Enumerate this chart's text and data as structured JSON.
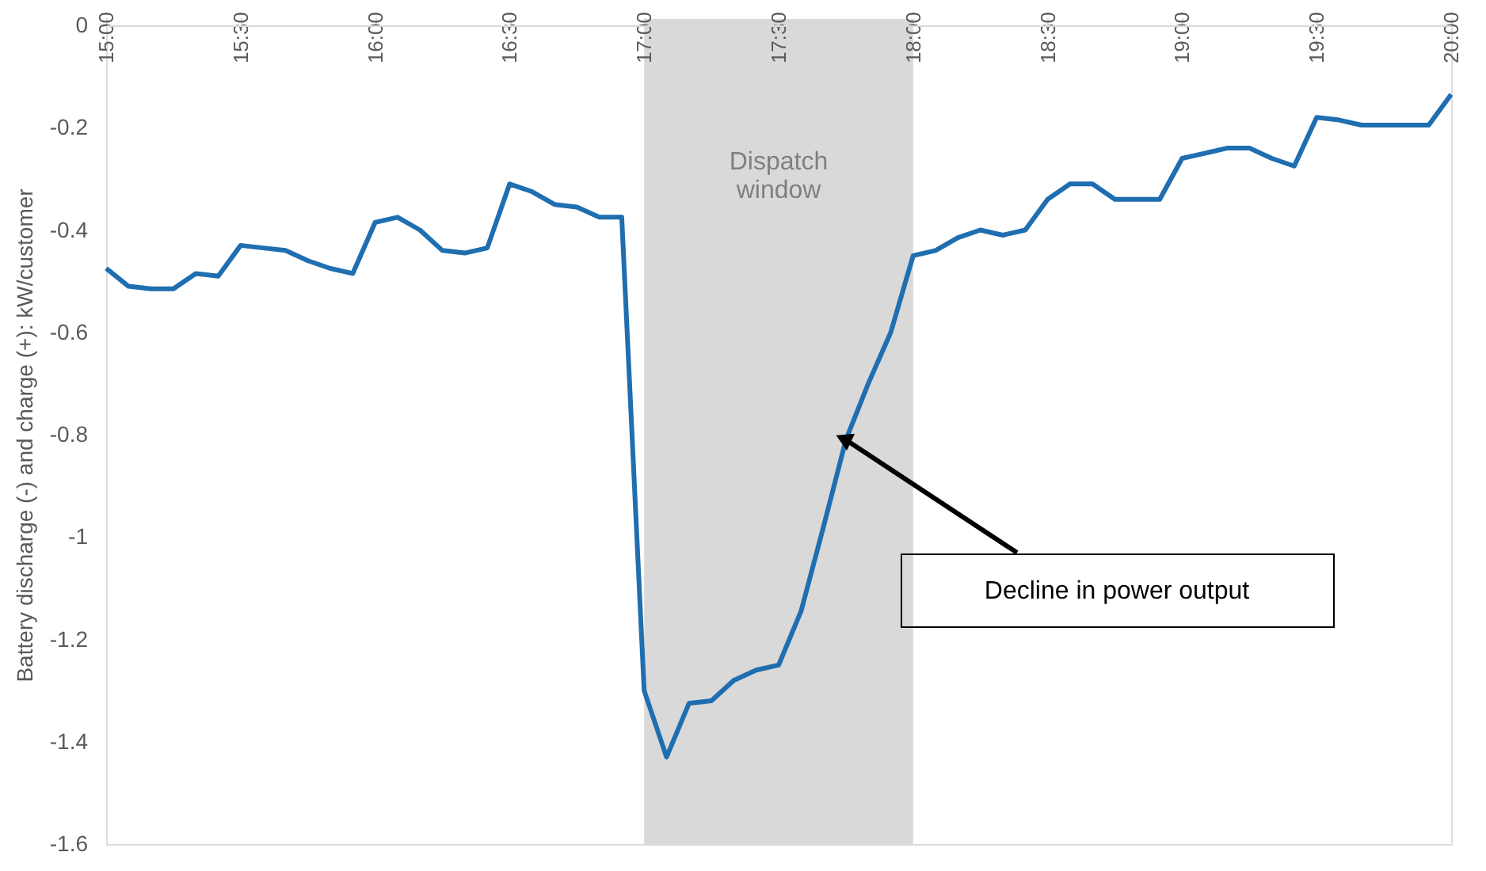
{
  "chart_data": {
    "type": "line",
    "ylabel": "Battery discharge (-) and charge (+): kW/customer",
    "x": [
      15,
      15.0833,
      15.1667,
      15.25,
      15.3333,
      15.4167,
      15.5,
      15.5833,
      15.6667,
      15.75,
      15.8333,
      15.9167,
      16,
      16.0833,
      16.1667,
      16.25,
      16.3333,
      16.4167,
      16.5,
      16.5833,
      16.6667,
      16.75,
      16.8333,
      16.9167,
      17,
      17.0833,
      17.1667,
      17.25,
      17.3333,
      17.4167,
      17.5,
      17.5833,
      17.6667,
      17.75,
      17.8333,
      17.9167,
      18,
      18.0833,
      18.1667,
      18.25,
      18.3333,
      18.4167,
      18.5,
      18.5833,
      18.6667,
      18.75,
      18.8333,
      18.9167,
      19,
      19.0833,
      19.1667,
      19.25,
      19.3333,
      19.4167,
      19.5,
      19.5833,
      19.6667,
      19.75,
      19.8333,
      19.9167,
      20
    ],
    "series": [
      {
        "color": "#1f6eb0",
        "values": [
          -0.475,
          -0.51,
          -0.515,
          -0.515,
          -0.485,
          -0.49,
          -0.43,
          -0.435,
          -0.44,
          -0.46,
          -0.475,
          -0.485,
          -0.385,
          -0.375,
          -0.4,
          -0.44,
          -0.445,
          -0.435,
          -0.31,
          -0.325,
          -0.35,
          -0.355,
          -0.375,
          -0.375,
          -1.3,
          -1.43,
          -1.325,
          -1.32,
          -1.28,
          -1.26,
          -1.25,
          -1.145,
          -0.98,
          -0.81,
          -0.7,
          -0.6,
          -0.45,
          -0.44,
          -0.415,
          -0.4,
          -0.41,
          -0.4,
          -0.34,
          -0.31,
          -0.31,
          -0.34,
          -0.34,
          -0.34,
          -0.26,
          -0.25,
          -0.24,
          -0.24,
          -0.26,
          -0.275,
          -0.18,
          -0.185,
          -0.195,
          -0.195,
          -0.195,
          -0.195,
          -0.135
        ]
      }
    ],
    "xlim": [
      15,
      20
    ],
    "xticks": [
      {
        "value": 15,
        "label": "15:00"
      },
      {
        "value": 15.5,
        "label": "15:30"
      },
      {
        "value": 16,
        "label": "16:00"
      },
      {
        "value": 16.5,
        "label": "16:30"
      },
      {
        "value": 17,
        "label": "17:00"
      },
      {
        "value": 17.5,
        "label": "17:30"
      },
      {
        "value": 18,
        "label": "18:00"
      },
      {
        "value": 18.5,
        "label": "18:30"
      },
      {
        "value": 19,
        "label": "19:00"
      },
      {
        "value": 19.5,
        "label": "19:30"
      },
      {
        "value": 20,
        "label": "20:00"
      }
    ],
    "ylim": [
      -1.6,
      0
    ],
    "yticks": [
      -1.6,
      -1.4,
      -1.2,
      -1,
      -0.8,
      -0.6,
      -0.4,
      -0.2,
      0
    ],
    "bands": [
      {
        "axis": "x",
        "from": 17,
        "to": 18,
        "label": "Dispatch window",
        "color": "#d9d9d9"
      }
    ],
    "annotations": [
      {
        "text": "Decline in power output",
        "x": 17.75,
        "y": -0.81
      }
    ],
    "grid": false,
    "marker": "none",
    "line_style": "solid"
  }
}
